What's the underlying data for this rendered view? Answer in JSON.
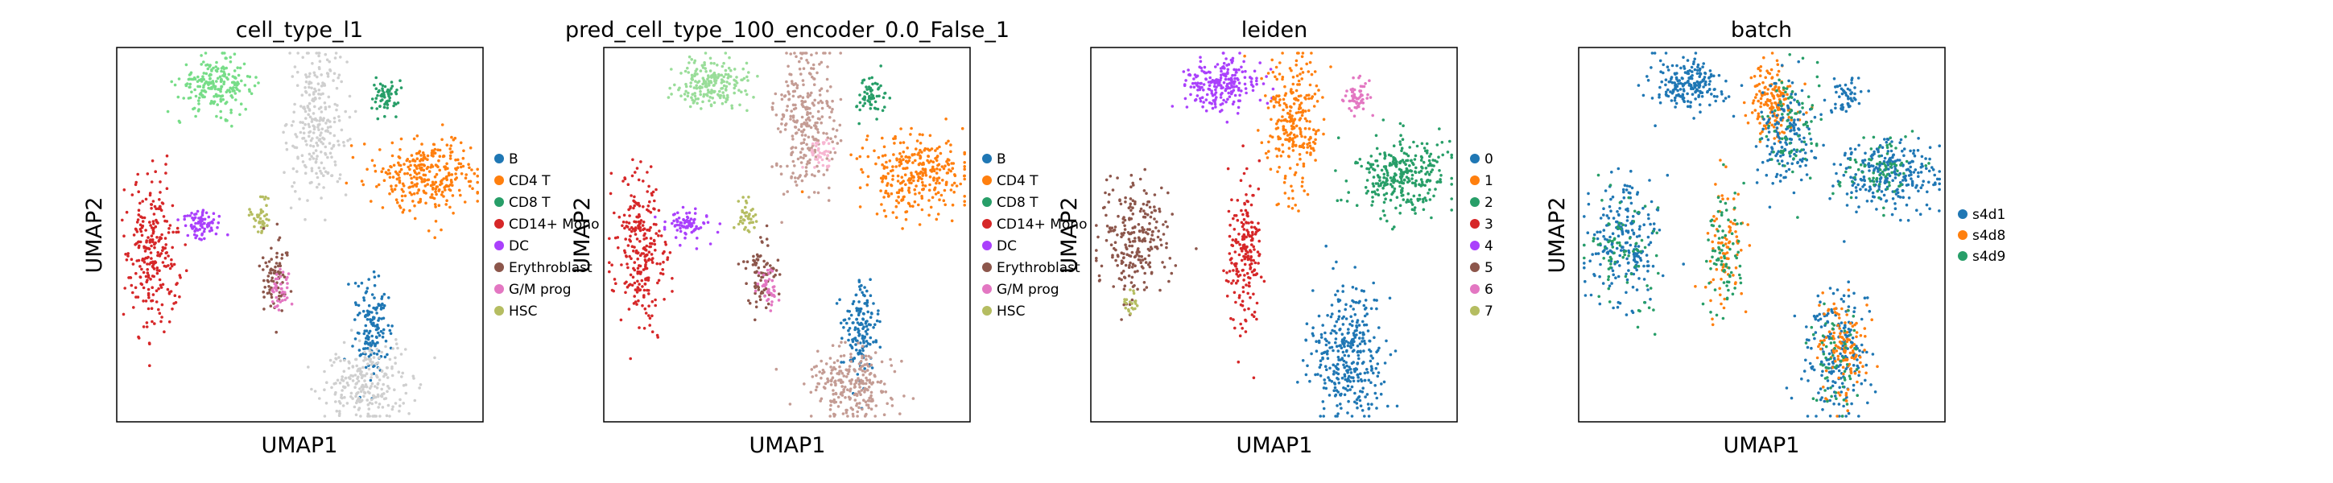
{
  "chart_data": [
    {
      "type": "scatter",
      "title": "cell_type_l1",
      "xlabel": "UMAP1",
      "ylabel": "UMAP2",
      "grid": false,
      "legend_position": "right",
      "legend": [
        {
          "label": "B",
          "color": "#1f77b4"
        },
        {
          "label": "CD4 T",
          "color": "#ff7f0e"
        },
        {
          "label": "CD8 T",
          "color": "#279e68"
        },
        {
          "label": "CD14+ Mono",
          "color": "#d62728"
        },
        {
          "label": "DC",
          "color": "#aa40fc"
        },
        {
          "label": "Erythroblast",
          "color": "#8c564b"
        },
        {
          "label": "G/M prog",
          "color": "#e377c2"
        },
        {
          "label": "HSC",
          "color": "#b5bd61"
        }
      ],
      "clusters": [
        {
          "cat": "CD8 T",
          "color": "#77dd88",
          "x": 0.27,
          "y": 0.9,
          "sx": 0.05,
          "sy": 0.035,
          "n": 220
        },
        {
          "cat": "",
          "color": "#cfcfcf",
          "x": 0.55,
          "y": 0.8,
          "sx": 0.04,
          "sy": 0.1,
          "n": 260
        },
        {
          "cat": "CD8 T",
          "color": "#279e68",
          "x": 0.73,
          "y": 0.87,
          "sx": 0.02,
          "sy": 0.025,
          "n": 60
        },
        {
          "cat": "CD4 T",
          "color": "#ff7f0e",
          "x": 0.85,
          "y": 0.66,
          "sx": 0.07,
          "sy": 0.05,
          "n": 300
        },
        {
          "cat": "CD14+ Mono",
          "color": "#d62728",
          "x": 0.1,
          "y": 0.45,
          "sx": 0.035,
          "sy": 0.1,
          "n": 260
        },
        {
          "cat": "DC",
          "color": "#aa40fc",
          "x": 0.23,
          "y": 0.53,
          "sx": 0.03,
          "sy": 0.02,
          "n": 80
        },
        {
          "cat": "HSC",
          "color": "#b5bd61",
          "x": 0.39,
          "y": 0.55,
          "sx": 0.015,
          "sy": 0.03,
          "n": 40
        },
        {
          "cat": "Erythroblast",
          "color": "#8c564b",
          "x": 0.43,
          "y": 0.4,
          "sx": 0.02,
          "sy": 0.05,
          "n": 80
        },
        {
          "cat": "G/M prog",
          "color": "#e377c2",
          "x": 0.45,
          "y": 0.35,
          "sx": 0.015,
          "sy": 0.03,
          "n": 40
        },
        {
          "cat": "B",
          "color": "#1f77b4",
          "x": 0.7,
          "y": 0.25,
          "sx": 0.025,
          "sy": 0.07,
          "n": 150
        },
        {
          "cat": "",
          "color": "#cfcfcf",
          "x": 0.68,
          "y": 0.1,
          "sx": 0.06,
          "sy": 0.05,
          "n": 240
        }
      ]
    },
    {
      "type": "scatter",
      "title": "pred_cell_type_100_encoder_0.0_False_1",
      "xlabel": "UMAP1",
      "ylabel": "UMAP2",
      "grid": false,
      "legend_position": "right",
      "legend": [
        {
          "label": "B",
          "color": "#1f77b4"
        },
        {
          "label": "CD4 T",
          "color": "#ff7f0e"
        },
        {
          "label": "CD8 T",
          "color": "#279e68"
        },
        {
          "label": "CD14+ Mono",
          "color": "#d62728"
        },
        {
          "label": "DC",
          "color": "#aa40fc"
        },
        {
          "label": "Erythroblast",
          "color": "#8c564b"
        },
        {
          "label": "G/M prog",
          "color": "#e377c2"
        },
        {
          "label": "HSC",
          "color": "#b5bd61"
        }
      ],
      "clusters": [
        {
          "cat": "CD8 T",
          "color": "#99dd99",
          "x": 0.3,
          "y": 0.9,
          "sx": 0.05,
          "sy": 0.035,
          "n": 200
        },
        {
          "cat": "",
          "color": "#c49c94",
          "x": 0.55,
          "y": 0.8,
          "sx": 0.04,
          "sy": 0.1,
          "n": 280
        },
        {
          "cat": "G/M prog",
          "color": "#f7b6d2",
          "x": 0.6,
          "y": 0.72,
          "sx": 0.02,
          "sy": 0.02,
          "n": 40
        },
        {
          "cat": "CD8 T",
          "color": "#279e68",
          "x": 0.73,
          "y": 0.87,
          "sx": 0.02,
          "sy": 0.025,
          "n": 60
        },
        {
          "cat": "CD4 T",
          "color": "#ff7f0e",
          "x": 0.85,
          "y": 0.66,
          "sx": 0.07,
          "sy": 0.05,
          "n": 300
        },
        {
          "cat": "CD14+ Mono",
          "color": "#d62728",
          "x": 0.1,
          "y": 0.45,
          "sx": 0.035,
          "sy": 0.1,
          "n": 260
        },
        {
          "cat": "DC",
          "color": "#aa40fc",
          "x": 0.23,
          "y": 0.53,
          "sx": 0.03,
          "sy": 0.02,
          "n": 80
        },
        {
          "cat": "HSC",
          "color": "#b5bd61",
          "x": 0.39,
          "y": 0.55,
          "sx": 0.015,
          "sy": 0.03,
          "n": 40
        },
        {
          "cat": "Erythroblast",
          "color": "#8c564b",
          "x": 0.43,
          "y": 0.4,
          "sx": 0.02,
          "sy": 0.05,
          "n": 80
        },
        {
          "cat": "G/M prog",
          "color": "#e377c2",
          "x": 0.45,
          "y": 0.35,
          "sx": 0.015,
          "sy": 0.03,
          "n": 40
        },
        {
          "cat": "B",
          "color": "#1f77b4",
          "x": 0.7,
          "y": 0.25,
          "sx": 0.025,
          "sy": 0.07,
          "n": 150
        },
        {
          "cat": "",
          "color": "#c49c94",
          "x": 0.68,
          "y": 0.1,
          "sx": 0.06,
          "sy": 0.05,
          "n": 240
        }
      ]
    },
    {
      "type": "scatter",
      "title": "leiden",
      "xlabel": "UMAP1",
      "ylabel": "UMAP2",
      "grid": false,
      "legend_position": "right",
      "legend": [
        {
          "label": "0",
          "color": "#1f77b4"
        },
        {
          "label": "1",
          "color": "#ff7f0e"
        },
        {
          "label": "2",
          "color": "#279e68"
        },
        {
          "label": "3",
          "color": "#d62728"
        },
        {
          "label": "4",
          "color": "#aa40fc"
        },
        {
          "label": "5",
          "color": "#8c564b"
        },
        {
          "label": "6",
          "color": "#e377c2"
        },
        {
          "label": "7",
          "color": "#b5bd61"
        }
      ],
      "clusters": [
        {
          "cat": "4",
          "color": "#aa40fc",
          "x": 0.35,
          "y": 0.9,
          "sx": 0.05,
          "sy": 0.035,
          "n": 220
        },
        {
          "cat": "1",
          "color": "#ff7f0e",
          "x": 0.55,
          "y": 0.8,
          "sx": 0.04,
          "sy": 0.1,
          "n": 260
        },
        {
          "cat": "6",
          "color": "#e377c2",
          "x": 0.73,
          "y": 0.87,
          "sx": 0.02,
          "sy": 0.025,
          "n": 60
        },
        {
          "cat": "2",
          "color": "#279e68",
          "x": 0.85,
          "y": 0.66,
          "sx": 0.07,
          "sy": 0.05,
          "n": 300
        },
        {
          "cat": "5",
          "color": "#8c564b",
          "x": 0.12,
          "y": 0.48,
          "sx": 0.05,
          "sy": 0.08,
          "n": 240
        },
        {
          "cat": "7",
          "color": "#b5bd61",
          "x": 0.11,
          "y": 0.32,
          "sx": 0.01,
          "sy": 0.02,
          "n": 20
        },
        {
          "cat": "3",
          "color": "#d62728",
          "x": 0.42,
          "y": 0.45,
          "sx": 0.025,
          "sy": 0.1,
          "n": 200
        },
        {
          "cat": "0",
          "color": "#1f77b4",
          "x": 0.7,
          "y": 0.18,
          "sx": 0.05,
          "sy": 0.09,
          "n": 340
        }
      ]
    },
    {
      "type": "scatter",
      "title": "batch",
      "xlabel": "UMAP1",
      "ylabel": "UMAP2",
      "grid": false,
      "legend_position": "right",
      "legend": [
        {
          "label": "s4d1",
          "color": "#1f77b4"
        },
        {
          "label": "s4d8",
          "color": "#ff7f0e"
        },
        {
          "label": "s4d9",
          "color": "#279e68"
        }
      ],
      "clusters": [
        {
          "cat": "s4d1",
          "color": "#1f77b4",
          "x": 0.3,
          "y": 0.9,
          "sx": 0.05,
          "sy": 0.035,
          "n": 200
        },
        {
          "cat": "s4d8",
          "color": "#ff7f0e",
          "x": 0.53,
          "y": 0.86,
          "sx": 0.03,
          "sy": 0.05,
          "n": 160
        },
        {
          "cat": "s4d1",
          "color": "#1f77b4",
          "x": 0.57,
          "y": 0.76,
          "sx": 0.04,
          "sy": 0.07,
          "n": 160
        },
        {
          "cat": "s4d9",
          "color": "#279e68",
          "x": 0.58,
          "y": 0.8,
          "sx": 0.04,
          "sy": 0.08,
          "n": 80
        },
        {
          "cat": "s4d1",
          "color": "#1f77b4",
          "x": 0.73,
          "y": 0.87,
          "sx": 0.02,
          "sy": 0.025,
          "n": 50
        },
        {
          "cat": "s4d1",
          "color": "#1f77b4",
          "x": 0.85,
          "y": 0.66,
          "sx": 0.07,
          "sy": 0.05,
          "n": 260
        },
        {
          "cat": "s4d9",
          "color": "#279e68",
          "x": 0.83,
          "y": 0.68,
          "sx": 0.06,
          "sy": 0.04,
          "n": 80
        },
        {
          "cat": "s4d1",
          "color": "#1f77b4",
          "x": 0.12,
          "y": 0.48,
          "sx": 0.05,
          "sy": 0.08,
          "n": 220
        },
        {
          "cat": "s4d9",
          "color": "#279e68",
          "x": 0.13,
          "y": 0.46,
          "sx": 0.05,
          "sy": 0.08,
          "n": 80
        },
        {
          "cat": "s4d8",
          "color": "#ff7f0e",
          "x": 0.4,
          "y": 0.45,
          "sx": 0.03,
          "sy": 0.09,
          "n": 80
        },
        {
          "cat": "s4d9",
          "color": "#279e68",
          "x": 0.4,
          "y": 0.45,
          "sx": 0.03,
          "sy": 0.09,
          "n": 80
        },
        {
          "cat": "s4d1",
          "color": "#1f77b4",
          "x": 0.7,
          "y": 0.18,
          "sx": 0.05,
          "sy": 0.09,
          "n": 200
        },
        {
          "cat": "s4d8",
          "color": "#ff7f0e",
          "x": 0.72,
          "y": 0.2,
          "sx": 0.03,
          "sy": 0.08,
          "n": 120
        },
        {
          "cat": "s4d9",
          "color": "#279e68",
          "x": 0.7,
          "y": 0.15,
          "sx": 0.04,
          "sy": 0.07,
          "n": 60
        }
      ]
    }
  ]
}
